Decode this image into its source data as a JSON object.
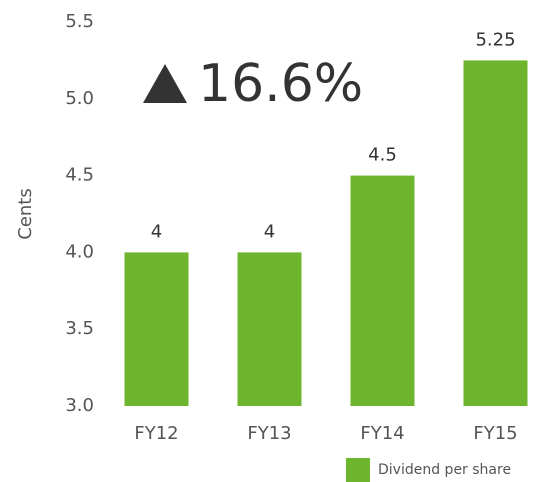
{
  "chart_data": {
    "type": "bar",
    "annotation": "16.6%",
    "y_label": "Cents",
    "categories": [
      "FY12",
      "FY13",
      "FY14",
      "FY15"
    ],
    "series": [
      {
        "name": "Dividend per share",
        "color": "#6cb52d",
        "values": [
          4,
          4,
          4.5,
          5.25
        ]
      }
    ],
    "ylim": [
      3,
      5.5
    ],
    "yticks": [
      {
        "value": 3,
        "label": "3.0"
      },
      {
        "value": 3.5,
        "label": "3.5"
      },
      {
        "value": 4,
        "label": "4.0"
      },
      {
        "value": 4.5,
        "label": "4.5"
      },
      {
        "value": 5,
        "label": "5.0"
      },
      {
        "value": 5.5,
        "label": "5.5"
      }
    ],
    "grid": false,
    "legend": "bottom-right"
  }
}
